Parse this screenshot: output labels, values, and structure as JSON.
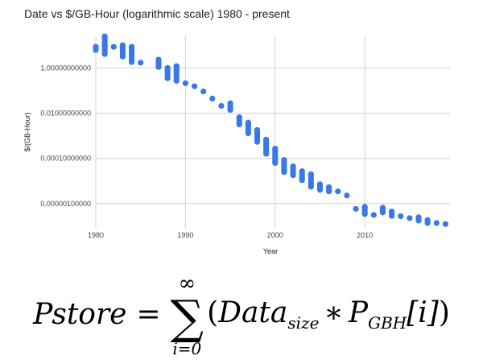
{
  "chart_data": {
    "type": "scatter",
    "title": "Date vs $/GB-Hour (logarithmic scale) 1980 - present",
    "xlabel": "Year",
    "ylabel": "$/(GB-Hour)",
    "yscale": "log",
    "xlim": [
      1980,
      2019.5
    ],
    "ylim": [
      8.5e-08,
      25
    ],
    "grid": true,
    "legend": "none",
    "color": "#3b78e7",
    "x_ticks": [
      1980,
      1990,
      2000,
      2010
    ],
    "x_tick_labels": [
      "1980",
      "1990",
      "2000",
      "2010"
    ],
    "y_ticks": [
      1,
      0.01,
      0.0001,
      1e-06
    ],
    "y_tick_labels": [
      "1.00000000000",
      "0.01000000000",
      "0.00010000000",
      "0.00000100000"
    ],
    "points": [
      [
        1980,
        6.2
      ],
      [
        1980,
        8.5
      ],
      [
        1981,
        4.1
      ],
      [
        1981,
        10
      ],
      [
        1981,
        24.5
      ],
      [
        1982,
        8.5
      ],
      [
        1983,
        3.2
      ],
      [
        1983,
        10
      ],
      [
        1984,
        1.8
      ],
      [
        1984,
        8.5
      ],
      [
        1985,
        1.7
      ],
      [
        1987,
        1.1
      ],
      [
        1987,
        2.3
      ],
      [
        1988,
        0.35
      ],
      [
        1988,
        0.7
      ],
      [
        1988,
        1.0
      ],
      [
        1989,
        0.27
      ],
      [
        1989,
        0.8
      ],
      [
        1989,
        1.2
      ],
      [
        1990,
        0.21
      ],
      [
        1991,
        0.155
      ],
      [
        1992,
        0.091
      ],
      [
        1993,
        0.044
      ],
      [
        1994,
        0.021
      ],
      [
        1995,
        0.014
      ],
      [
        1995,
        0.027
      ],
      [
        1996,
        0.0032
      ],
      [
        1996,
        0.0066
      ],
      [
        1997,
        0.0013
      ],
      [
        1997,
        0.0038
      ],
      [
        1998,
        0.00054
      ],
      [
        1998,
        0.0018
      ],
      [
        1999,
        0.00016
      ],
      [
        1999,
        0.00068
      ],
      [
        2000,
        6.3e-05
      ],
      [
        2000,
        0.00027
      ],
      [
        2001,
        2.5e-05
      ],
      [
        2001,
        8.5e-05
      ],
      [
        2002,
        1.8e-05
      ],
      [
        2002,
        4.5e-05
      ],
      [
        2003,
        1.1e-05
      ],
      [
        2003,
        2.7e-05
      ],
      [
        2004,
        5.6e-06
      ],
      [
        2004,
        2e-05
      ],
      [
        2005,
        4.1e-06
      ],
      [
        2005,
        7.2e-06
      ],
      [
        2006,
        3.5e-06
      ],
      [
        2006,
        5.4e-06
      ],
      [
        2007,
        3.5e-06
      ],
      [
        2008,
        2.3e-06
      ],
      [
        2009,
        5.9e-07
      ],
      [
        2010,
        3.5e-07
      ],
      [
        2010,
        7.2e-07
      ],
      [
        2011,
        3.2e-07
      ],
      [
        2012,
        4.1e-07
      ],
      [
        2012,
        6.6e-07
      ],
      [
        2013,
        2.9e-07
      ],
      [
        2013,
        4.5e-07
      ],
      [
        2014,
        2.8e-07
      ],
      [
        2015,
        2.3e-07
      ],
      [
        2016,
        1.8e-07
      ],
      [
        2016,
        2.5e-07
      ],
      [
        2017,
        1.4e-07
      ],
      [
        2017,
        1.9e-07
      ],
      [
        2018,
        1.4e-07
      ],
      [
        2019,
        1.26e-07
      ]
    ]
  },
  "formula": {
    "lhs": "Pstore",
    "equals": "=",
    "sum_symbol": "∑",
    "upper_limit": "∞",
    "lower_limit": "i=0",
    "open_paren": "(",
    "data": "Data",
    "data_sub": "size",
    "times": "∗",
    "p": "P",
    "p_sub": "GBH",
    "index": "[i]",
    "close_paren": ")"
  }
}
